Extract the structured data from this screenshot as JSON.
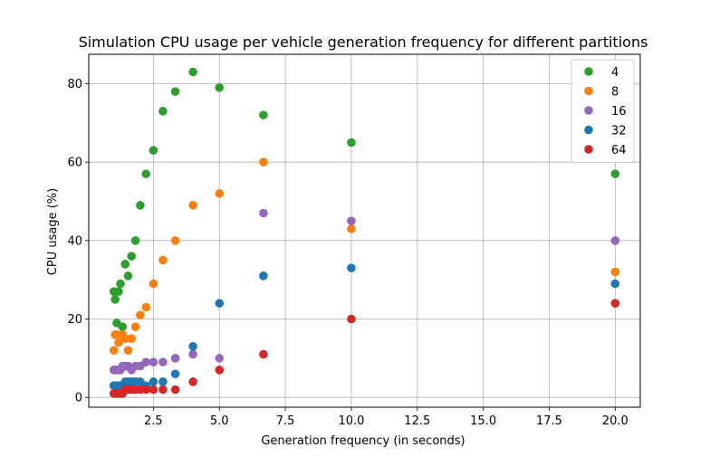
{
  "chart_data": {
    "type": "scatter",
    "title": "Simulation CPU usage per vehicle generation frequency for different partitions",
    "xlabel": "Generation frequency (in seconds)",
    "ylabel": "CPU usage (%)",
    "xlim": [
      0.05,
      20.95
    ],
    "ylim": [
      -2.5,
      87.5
    ],
    "xticks": [
      2.5,
      5.0,
      7.5,
      10.0,
      12.5,
      15.0,
      17.5,
      20.0
    ],
    "xtick_labels": [
      "2.5",
      "5.0",
      "7.5",
      "10.0",
      "12.5",
      "15.0",
      "17.5",
      "20.0"
    ],
    "yticks": [
      0,
      20,
      40,
      60,
      80
    ],
    "ytick_labels": [
      "0",
      "20",
      "40",
      "60",
      "80"
    ],
    "grid": true,
    "legend_position": "top-right",
    "series": [
      {
        "name": "4",
        "color": "#2ca02c",
        "points": [
          [
            1.0,
            27
          ],
          [
            1.05,
            25
          ],
          [
            1.11,
            19
          ],
          [
            1.18,
            27
          ],
          [
            1.25,
            29
          ],
          [
            1.33,
            18
          ],
          [
            1.43,
            34
          ],
          [
            1.54,
            31
          ],
          [
            1.67,
            36
          ],
          [
            1.82,
            40
          ],
          [
            2.0,
            49
          ],
          [
            2.22,
            57
          ],
          [
            2.5,
            63
          ],
          [
            2.86,
            73
          ],
          [
            3.33,
            78
          ],
          [
            4.0,
            83
          ],
          [
            5.0,
            79
          ],
          [
            6.67,
            72
          ],
          [
            10.0,
            65
          ],
          [
            20.0,
            57
          ]
        ]
      },
      {
        "name": "8",
        "color": "#ff7f0e",
        "points": [
          [
            1.0,
            12
          ],
          [
            1.05,
            16
          ],
          [
            1.11,
            16
          ],
          [
            1.18,
            14
          ],
          [
            1.25,
            15
          ],
          [
            1.33,
            16
          ],
          [
            1.43,
            15
          ],
          [
            1.54,
            12
          ],
          [
            1.67,
            15
          ],
          [
            1.82,
            18
          ],
          [
            2.0,
            21
          ],
          [
            2.22,
            23
          ],
          [
            2.5,
            29
          ],
          [
            2.86,
            35
          ],
          [
            3.33,
            40
          ],
          [
            4.0,
            49
          ],
          [
            5.0,
            52
          ],
          [
            6.67,
            60
          ],
          [
            10.0,
            43
          ],
          [
            20.0,
            32
          ]
        ]
      },
      {
        "name": "16",
        "color": "#9467bd",
        "points": [
          [
            1.0,
            7
          ],
          [
            1.05,
            7
          ],
          [
            1.11,
            7
          ],
          [
            1.18,
            7
          ],
          [
            1.25,
            7
          ],
          [
            1.33,
            8
          ],
          [
            1.43,
            8
          ],
          [
            1.54,
            8
          ],
          [
            1.67,
            7
          ],
          [
            1.82,
            8
          ],
          [
            2.0,
            8
          ],
          [
            2.22,
            9
          ],
          [
            2.5,
            9
          ],
          [
            2.86,
            9
          ],
          [
            3.33,
            10
          ],
          [
            4.0,
            11
          ],
          [
            5.0,
            10
          ],
          [
            6.67,
            47
          ],
          [
            10.0,
            45
          ],
          [
            20.0,
            40
          ]
        ]
      },
      {
        "name": "32",
        "color": "#1f77b4",
        "points": [
          [
            1.0,
            3
          ],
          [
            1.05,
            3
          ],
          [
            1.11,
            3
          ],
          [
            1.18,
            3
          ],
          [
            1.25,
            3
          ],
          [
            1.33,
            3
          ],
          [
            1.43,
            4
          ],
          [
            1.54,
            4
          ],
          [
            1.67,
            4
          ],
          [
            1.82,
            4
          ],
          [
            2.0,
            4
          ],
          [
            2.22,
            3
          ],
          [
            2.5,
            4
          ],
          [
            2.86,
            4
          ],
          [
            3.33,
            6
          ],
          [
            4.0,
            13
          ],
          [
            5.0,
            24
          ],
          [
            6.67,
            31
          ],
          [
            10.0,
            33
          ],
          [
            20.0,
            29
          ]
        ]
      },
      {
        "name": "64",
        "color": "#d62728",
        "points": [
          [
            1.0,
            1
          ],
          [
            1.05,
            1
          ],
          [
            1.11,
            1
          ],
          [
            1.18,
            1
          ],
          [
            1.25,
            1
          ],
          [
            1.33,
            1
          ],
          [
            1.43,
            2
          ],
          [
            1.54,
            2
          ],
          [
            1.67,
            2
          ],
          [
            1.82,
            2
          ],
          [
            2.0,
            2
          ],
          [
            2.22,
            2
          ],
          [
            2.5,
            2
          ],
          [
            2.86,
            2
          ],
          [
            3.33,
            2
          ],
          [
            4.0,
            4
          ],
          [
            5.0,
            7
          ],
          [
            6.67,
            11
          ],
          [
            10.0,
            20
          ],
          [
            20.0,
            24
          ]
        ]
      }
    ]
  }
}
